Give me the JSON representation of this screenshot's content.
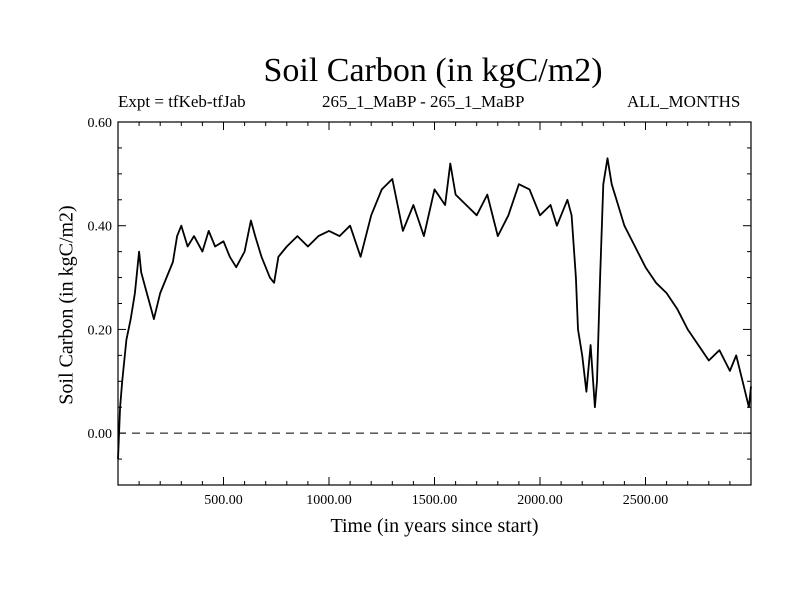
{
  "chart_data": {
    "type": "line",
    "title": "Soil Carbon (in kgC/m2)",
    "annotations": {
      "left": "Expt = tfKeb-tfJab",
      "center": "265_1_MaBP - 265_1_MaBP",
      "right": "ALL_MONTHS"
    },
    "xlabel": "Time (in years since start)",
    "ylabel": "Soil Carbon (in kgC/m2)",
    "xlim": [
      0,
      3000
    ],
    "ylim": [
      -0.1,
      0.6
    ],
    "xticks": [
      500,
      1000,
      1500,
      2000,
      2500
    ],
    "xtick_labels": [
      "500.00",
      "1000.00",
      "1500.00",
      "2000.00",
      "2500.00"
    ],
    "yticks": [
      0.6,
      0.4,
      0.2,
      0.0
    ],
    "ytick_labels": [
      "0.60",
      "0.40",
      "0.20",
      "0.00"
    ],
    "reference_line": {
      "y": 0.0,
      "style": "dashed"
    },
    "grid": false,
    "legend": "none",
    "series": [
      {
        "x": [
          0,
          10,
          20,
          40,
          60,
          80,
          100,
          110,
          130,
          150,
          170,
          200,
          230,
          260,
          280,
          300,
          330,
          360,
          400,
          430,
          460,
          500,
          530,
          560,
          600,
          630,
          650,
          680,
          720,
          740,
          760,
          800,
          850,
          900,
          950,
          1000,
          1050,
          1100,
          1150,
          1200,
          1250,
          1300,
          1350,
          1400,
          1450,
          1500,
          1550,
          1575,
          1600,
          1650,
          1700,
          1750,
          1800,
          1850,
          1900,
          1950,
          2000,
          2050,
          2080,
          2100,
          2130,
          2150,
          2170,
          2180,
          2200,
          2220,
          2240,
          2260,
          2270,
          2285,
          2300,
          2320,
          2340,
          2370,
          2400,
          2450,
          2500,
          2550,
          2600,
          2650,
          2700,
          2750,
          2800,
          2850,
          2900,
          2930,
          2960,
          2990,
          3000
        ],
        "y": [
          -0.05,
          0.05,
          0.1,
          0.18,
          0.22,
          0.27,
          0.35,
          0.31,
          0.28,
          0.25,
          0.22,
          0.27,
          0.3,
          0.33,
          0.38,
          0.4,
          0.36,
          0.38,
          0.35,
          0.39,
          0.36,
          0.37,
          0.34,
          0.32,
          0.35,
          0.41,
          0.38,
          0.34,
          0.3,
          0.29,
          0.34,
          0.36,
          0.38,
          0.36,
          0.38,
          0.39,
          0.38,
          0.4,
          0.34,
          0.42,
          0.47,
          0.49,
          0.39,
          0.44,
          0.38,
          0.47,
          0.44,
          0.52,
          0.46,
          0.44,
          0.42,
          0.46,
          0.38,
          0.42,
          0.48,
          0.47,
          0.42,
          0.44,
          0.4,
          0.42,
          0.45,
          0.42,
          0.3,
          0.2,
          0.15,
          0.08,
          0.17,
          0.05,
          0.1,
          0.3,
          0.48,
          0.53,
          0.48,
          0.44,
          0.4,
          0.36,
          0.32,
          0.29,
          0.27,
          0.24,
          0.2,
          0.17,
          0.14,
          0.16,
          0.12,
          0.15,
          0.1,
          0.05,
          0.09
        ]
      }
    ]
  }
}
